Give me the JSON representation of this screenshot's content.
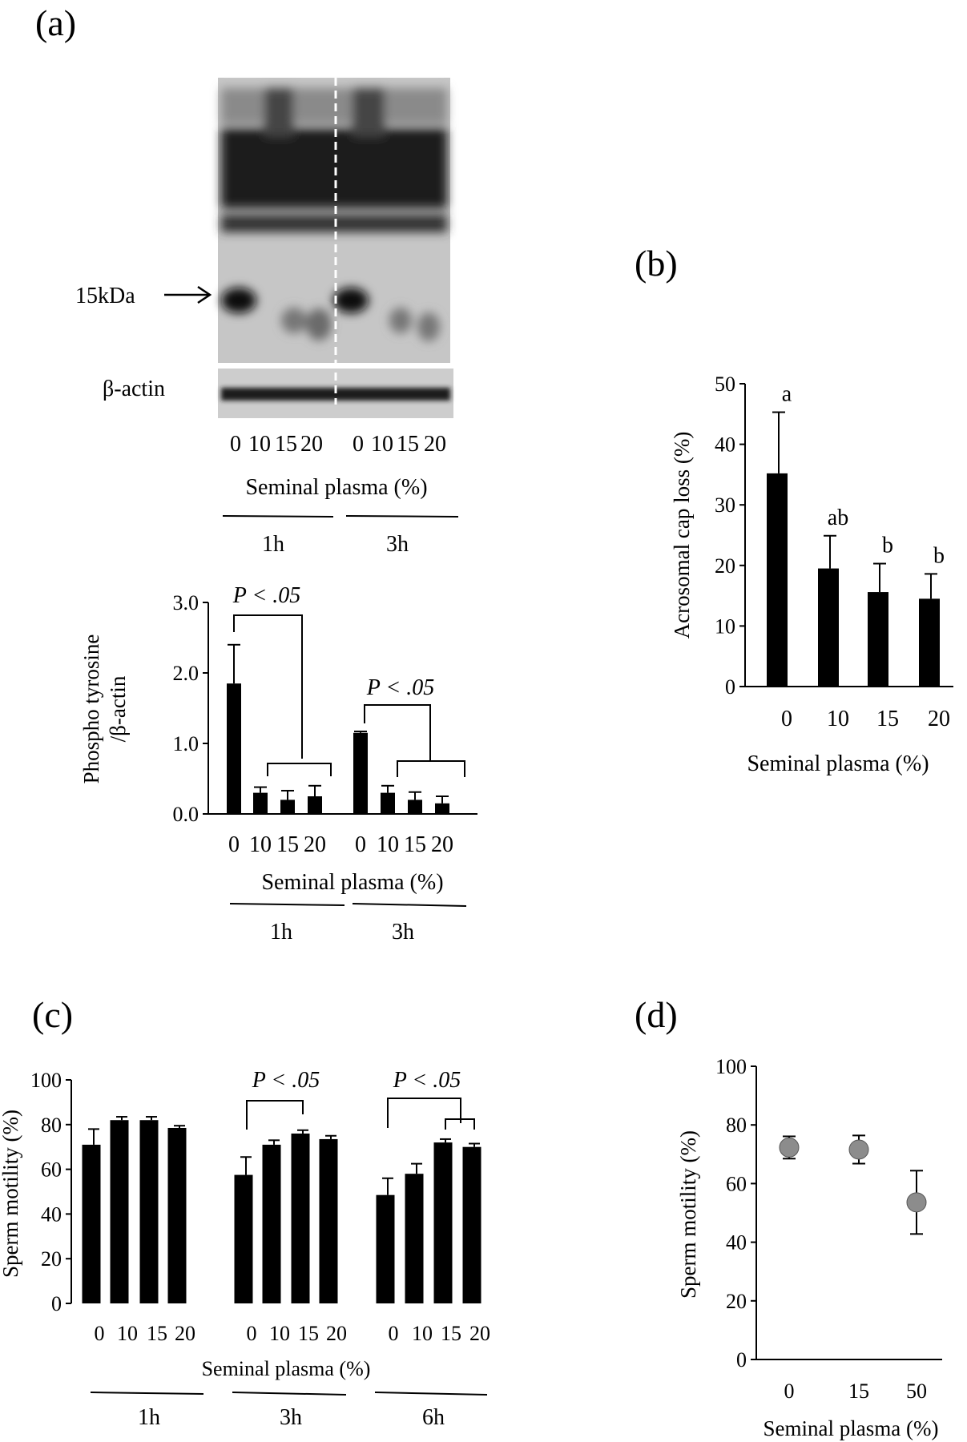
{
  "panels": {
    "a": {
      "letter": "(a)",
      "blot": {
        "marker_label": "15kDa",
        "loading_label": "β-actin",
        "lane_labels": [
          "0",
          "10",
          "15",
          "20",
          "0",
          "10",
          "15",
          "20"
        ],
        "xlabel": "Seminal plasma (%)",
        "groups": [
          "1h",
          "3h"
        ]
      },
      "chart_data": {
        "type": "bar",
        "categories": [
          "0",
          "10",
          "15",
          "20",
          "0",
          "10",
          "15",
          "20"
        ],
        "groups": [
          "1h",
          "3h"
        ],
        "values": [
          1.85,
          0.3,
          0.2,
          0.25,
          1.15,
          0.3,
          0.2,
          0.15
        ],
        "errors": [
          0.55,
          0.08,
          0.13,
          0.15,
          0.02,
          0.1,
          0.11,
          0.1
        ],
        "ylabel": [
          "Phospho tyrosine",
          "/β-actin"
        ],
        "xlabel": "Seminal plasma (%)",
        "yticks": [
          "0.0",
          "1.0",
          "2.0",
          "3.0"
        ],
        "ylim": [
          0,
          3
        ],
        "annotations": [
          "P < .05",
          "P < .05"
        ]
      }
    },
    "b": {
      "letter": "(b)",
      "chart_data": {
        "type": "bar",
        "categories": [
          "0",
          "10",
          "15",
          "20"
        ],
        "values": [
          35.2,
          19.5,
          15.6,
          14.5
        ],
        "errors": [
          10.1,
          5.4,
          4.7,
          4.1
        ],
        "significance": [
          "a",
          "ab",
          "b",
          "b"
        ],
        "ylabel": "Acrosomal cap loss (%)",
        "xlabel": "Seminal plasma (%)",
        "yticks": [
          "0",
          "10",
          "20",
          "30",
          "40",
          "50"
        ],
        "ylim": [
          0,
          50
        ]
      }
    },
    "c": {
      "letter": "(c)",
      "chart_data": {
        "type": "bar",
        "categories": [
          "0",
          "10",
          "15",
          "20",
          "0",
          "10",
          "15",
          "20",
          "0",
          "10",
          "15",
          "20"
        ],
        "groups": [
          "1h",
          "3h",
          "6h"
        ],
        "values": [
          71,
          82,
          82,
          78.5,
          57.5,
          71,
          76,
          73.5,
          48.5,
          58,
          72,
          70
        ],
        "errors": [
          7,
          1.5,
          1.5,
          1,
          8,
          2,
          1.5,
          1.5,
          7.5,
          4.5,
          1.5,
          1.5
        ],
        "ylabel": "Sperm motility (%)",
        "xlabel": "Seminal plasma (%)",
        "yticks": [
          "0",
          "20",
          "40",
          "60",
          "80",
          "100"
        ],
        "ylim": [
          0,
          100
        ],
        "annotations": [
          "P < .05",
          "P < .05"
        ]
      }
    },
    "d": {
      "letter": "(d)",
      "chart_data": {
        "type": "scatter",
        "categories": [
          "0",
          "15",
          "50"
        ],
        "values": [
          72.3,
          71.6,
          53.6
        ],
        "errors": [
          3.8,
          4.8,
          10.8
        ],
        "ylabel": "Sperm motility (%)",
        "xlabel": "Seminal plasma (%)",
        "yticks": [
          "0",
          "20",
          "40",
          "60",
          "80",
          "100"
        ],
        "ylim": [
          0,
          100
        ],
        "marker_color": "#8c8c8c"
      }
    }
  }
}
